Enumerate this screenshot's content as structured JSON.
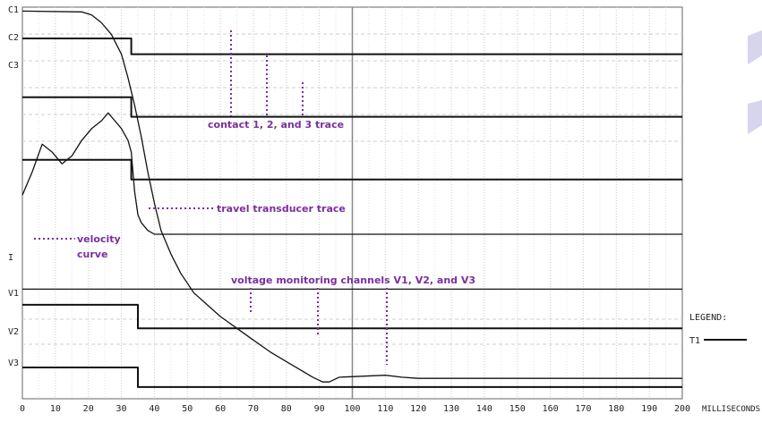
{
  "chart_data": {
    "type": "line",
    "xlabel": "MILLISECONDS",
    "xlim": [
      0,
      200
    ],
    "x_ticks": [
      0,
      10,
      20,
      30,
      40,
      50,
      60,
      70,
      80,
      90,
      100,
      110,
      120,
      130,
      140,
      150,
      160,
      170,
      180,
      190,
      200
    ],
    "channels": [
      "C1",
      "C2",
      "C3",
      "I",
      "V1",
      "V2",
      "V3"
    ],
    "grid": true,
    "legend_title": "LEGEND:",
    "legend_entries": [
      "T1"
    ],
    "annotations": [
      "contact 1, 2, and 3  trace",
      "travel transducer trace",
      "velocity curve",
      "voltage monitoring channels V1, V2, and V3"
    ],
    "series": [
      {
        "values": [
          [
            0,
            92
          ],
          [
            33,
            92
          ],
          [
            33,
            88
          ],
          [
            200,
            88
          ]
        ]
      },
      {
        "values": [
          [
            0,
            77
          ],
          [
            33,
            77
          ],
          [
            33,
            72
          ],
          [
            200,
            72
          ]
        ]
      },
      {
        "values": [
          [
            0,
            61
          ],
          [
            33,
            61
          ],
          [
            33,
            56
          ],
          [
            200,
            56
          ]
        ]
      },
      {
        "values": [
          [
            0,
            52
          ],
          [
            3,
            58
          ],
          [
            6,
            65
          ],
          [
            9,
            63
          ],
          [
            12,
            60
          ],
          [
            15,
            62
          ],
          [
            18,
            66
          ],
          [
            21,
            69
          ],
          [
            24,
            71
          ],
          [
            26,
            73
          ],
          [
            28,
            71
          ],
          [
            30,
            69
          ],
          [
            32,
            66
          ],
          [
            33,
            63
          ],
          [
            34,
            53
          ],
          [
            35,
            47
          ],
          [
            36,
            45
          ],
          [
            38,
            43
          ],
          [
            40,
            42
          ],
          [
            45,
            42
          ],
          [
            200,
            42
          ]
        ]
      },
      {
        "values": [
          [
            0,
            28
          ],
          [
            200,
            28
          ]
        ]
      },
      {
        "values": [
          [
            0,
            24
          ],
          [
            35,
            24
          ],
          [
            35,
            18
          ],
          [
            200,
            18
          ]
        ]
      },
      {
        "values": [
          [
            0,
            8
          ],
          [
            35,
            8
          ],
          [
            35,
            3
          ],
          [
            200,
            3
          ]
        ]
      },
      {
        "values": [
          [
            0,
            99
          ],
          [
            18,
            98.8
          ],
          [
            21,
            98
          ],
          [
            24,
            96
          ],
          [
            27,
            93
          ],
          [
            30,
            88
          ],
          [
            32,
            82
          ],
          [
            34,
            75
          ],
          [
            36,
            67
          ],
          [
            38,
            58
          ],
          [
            40,
            50
          ],
          [
            42,
            43
          ],
          [
            45,
            37
          ],
          [
            48,
            32
          ],
          [
            52,
            27
          ],
          [
            56,
            24
          ],
          [
            60,
            21
          ],
          [
            65,
            18
          ],
          [
            70,
            15
          ],
          [
            75,
            12
          ],
          [
            80,
            9.5
          ],
          [
            85,
            7
          ],
          [
            88,
            5.5
          ],
          [
            91,
            4.3
          ],
          [
            93,
            4.3
          ],
          [
            96,
            5.5
          ],
          [
            110,
            6
          ],
          [
            115,
            5.5
          ],
          [
            120,
            5.2
          ],
          [
            200,
            5.2
          ]
        ]
      }
    ]
  }
}
